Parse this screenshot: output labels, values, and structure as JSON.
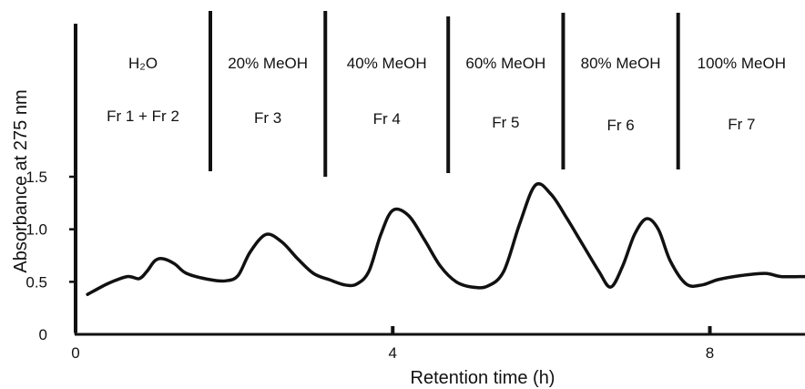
{
  "chart_data": {
    "type": "line",
    "title": "",
    "xlabel": "Retention time (h)",
    "ylabel": "Absorbance at 275 nm",
    "xlim": [
      0,
      9.2
    ],
    "ylim": [
      0,
      1.5
    ],
    "x_ticks": [
      0,
      4,
      8
    ],
    "x_tick_labels": [
      "0",
      "4",
      "8"
    ],
    "y_ticks": [
      0,
      0.5,
      1.0,
      1.5
    ],
    "y_tick_labels": [
      "0",
      "0.5",
      "1.0",
      "1.5"
    ],
    "grid": false,
    "series": [
      {
        "x": [
          0.15,
          0.4,
          0.65,
          0.8,
          0.9,
          1.0,
          1.1,
          1.25,
          1.4,
          1.7,
          1.9,
          2.05,
          2.2,
          2.4,
          2.6,
          2.8,
          3.0,
          3.2,
          3.4,
          3.55,
          3.7,
          3.85,
          4.0,
          4.2,
          4.4,
          4.6,
          4.8,
          5.0,
          5.2,
          5.4,
          5.6,
          5.8,
          6.0,
          6.2,
          6.4,
          6.6,
          6.75,
          6.9,
          7.05,
          7.2,
          7.35,
          7.5,
          7.7,
          7.9,
          8.1,
          8.4,
          8.7,
          8.9,
          9.2
        ],
        "y": [
          0.38,
          0.48,
          0.55,
          0.53,
          0.6,
          0.7,
          0.72,
          0.67,
          0.58,
          0.52,
          0.51,
          0.56,
          0.78,
          0.95,
          0.88,
          0.72,
          0.58,
          0.52,
          0.47,
          0.48,
          0.6,
          0.95,
          1.18,
          1.13,
          0.9,
          0.65,
          0.5,
          0.45,
          0.46,
          0.6,
          1.05,
          1.42,
          1.33,
          1.1,
          0.85,
          0.6,
          0.45,
          0.65,
          0.95,
          1.1,
          1.0,
          0.7,
          0.48,
          0.47,
          0.52,
          0.56,
          0.58,
          0.55,
          0.55
        ]
      }
    ],
    "fractions": [
      {
        "solvent": "H₂O",
        "fraction": "Fr 1 + Fr 2"
      },
      {
        "solvent": "20% MeOH",
        "fraction": "Fr 3"
      },
      {
        "solvent": "40% MeOH",
        "fraction": "Fr 4"
      },
      {
        "solvent": "60% MeOH",
        "fraction": "Fr 5"
      },
      {
        "solvent": "80% MeOH",
        "fraction": "Fr 6"
      },
      {
        "solvent": "100% MeOH",
        "fraction": "Fr 7"
      }
    ],
    "fraction_boundaries": [
      0,
      1.7,
      3.15,
      4.7,
      6.15,
      7.6
    ]
  }
}
